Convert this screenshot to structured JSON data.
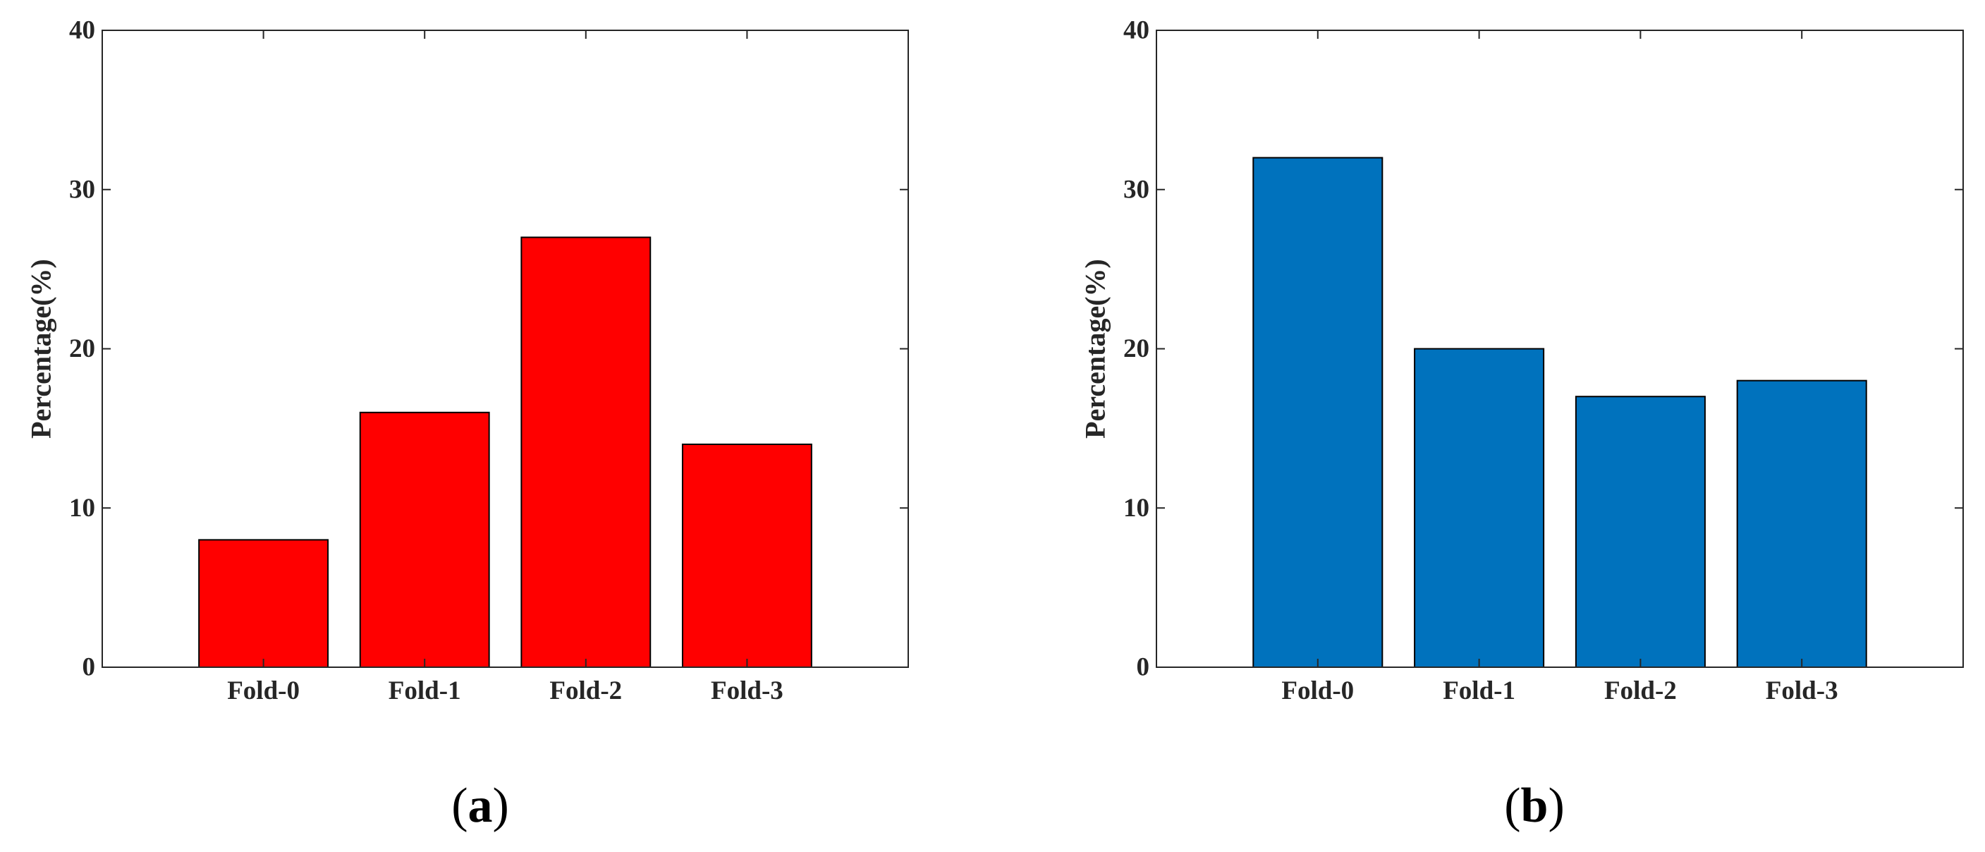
{
  "chart_data": [
    {
      "type": "bar",
      "panel_label": "(a)",
      "categories": [
        "Fold-0",
        "Fold-1",
        "Fold-2",
        "Fold-3"
      ],
      "values": [
        8,
        16,
        27,
        14
      ],
      "xlabel": "",
      "ylabel": "Percentage(%)",
      "ylim": [
        0,
        40
      ],
      "yticks": [
        0,
        10,
        20,
        30,
        40
      ],
      "bar_color": "#ff0000",
      "grid": false,
      "legend": "none"
    },
    {
      "type": "bar",
      "panel_label": "(b)",
      "categories": [
        "Fold-0",
        "Fold-1",
        "Fold-2",
        "Fold-3"
      ],
      "values": [
        32,
        20,
        17,
        18
      ],
      "xlabel": "",
      "ylabel": "Percentage(%)",
      "ylim": [
        0,
        40
      ],
      "yticks": [
        0,
        10,
        20,
        30,
        40
      ],
      "bar_color": "#0072bd",
      "grid": false,
      "legend": "none"
    }
  ],
  "colors": {
    "axis": "#262626",
    "bar_edge": "#000000",
    "background": "#ffffff"
  }
}
